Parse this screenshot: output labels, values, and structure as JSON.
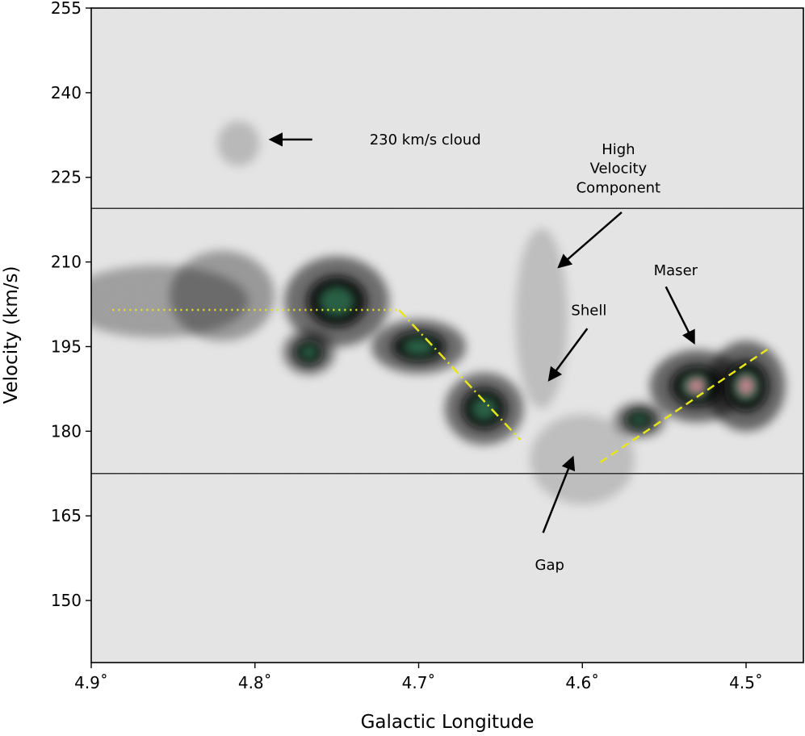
{
  "chart_data": {
    "type": "heatmap",
    "title": "",
    "xlabel": "Galactic Longitude",
    "ylabel": "Velocity (km/s)",
    "xlim": [
      4.9,
      4.465
    ],
    "ylim": [
      139,
      255
    ],
    "x_ticks": [
      {
        "value": 4.9,
        "label": "4.9˚"
      },
      {
        "value": 4.8,
        "label": "4.8˚"
      },
      {
        "value": 4.7,
        "label": "4.7˚"
      },
      {
        "value": 4.6,
        "label": "4.6˚"
      },
      {
        "value": 4.5,
        "label": "4.5˚"
      }
    ],
    "y_ticks": [
      {
        "value": 150,
        "label": "150"
      },
      {
        "value": 165,
        "label": "165"
      },
      {
        "value": 180,
        "label": "180"
      },
      {
        "value": 195,
        "label": "195"
      },
      {
        "value": 210,
        "label": "210"
      },
      {
        "value": 225,
        "label": "225"
      },
      {
        "value": 240,
        "label": "240"
      },
      {
        "value": 255,
        "label": "255"
      }
    ],
    "grid": false,
    "hlines": [
      219.5,
      172.5
    ],
    "emission": [
      {
        "x": 4.86,
        "y": 203,
        "sx": 0.035,
        "sy": 4,
        "a": 0.55
      },
      {
        "x": 4.82,
        "y": 204,
        "sx": 0.02,
        "sy": 5,
        "a": 0.6
      },
      {
        "x": 4.75,
        "y": 203,
        "sx": 0.02,
        "sy": 5,
        "a": 0.95
      },
      {
        "x": 4.767,
        "y": 194,
        "sx": 0.01,
        "sy": 2.5,
        "a": 0.85
      },
      {
        "x": 4.7,
        "y": 195,
        "sx": 0.018,
        "sy": 3,
        "a": 0.95
      },
      {
        "x": 4.66,
        "y": 184,
        "sx": 0.015,
        "sy": 4,
        "a": 0.95
      },
      {
        "x": 4.625,
        "y": 200,
        "sx": 0.01,
        "sy": 10,
        "a": 0.3
      },
      {
        "x": 4.6,
        "y": 175,
        "sx": 0.02,
        "sy": 5,
        "a": 0.3
      },
      {
        "x": 4.565,
        "y": 182,
        "sx": 0.01,
        "sy": 2,
        "a": 0.8
      },
      {
        "x": 4.53,
        "y": 188,
        "sx": 0.018,
        "sy": 4,
        "a": 1.0
      },
      {
        "x": 4.5,
        "y": 188,
        "sx": 0.015,
        "sy": 5,
        "a": 1.0
      },
      {
        "x": 4.81,
        "y": 231,
        "sx": 0.008,
        "sy": 2.5,
        "a": 0.35
      }
    ],
    "lines": [
      {
        "style": "dotted",
        "color": "#e6e619",
        "points": [
          [
            4.887,
            201.5
          ],
          [
            4.712,
            201.5
          ]
        ]
      },
      {
        "style": "dashdot",
        "color": "#e6e619",
        "points": [
          [
            4.712,
            201.5
          ],
          [
            4.638,
            178.5
          ]
        ]
      },
      {
        "style": "dashed",
        "color": "#e6e619",
        "points": [
          [
            4.589,
            174.5
          ],
          [
            4.487,
            194.5
          ]
        ]
      }
    ],
    "annotations": [
      {
        "text": "230 km/s cloud",
        "x": 4.73,
        "y": 231.7,
        "arrow_to": [
          4.79,
          231.7
        ],
        "arrow_from": [
          4.765,
          231.7
        ],
        "anchor": "start"
      },
      {
        "text": "High",
        "x": 4.578,
        "y": 230,
        "anchor": "middle"
      },
      {
        "text": "Velocity",
        "x": 4.578,
        "y": 226.6,
        "anchor": "middle"
      },
      {
        "text": "Component",
        "x": 4.578,
        "y": 223.2,
        "anchor": "middle",
        "arrow_from": [
          4.576,
          218.8
        ],
        "arrow_to": [
          4.614,
          209.2
        ]
      },
      {
        "text": "Maser",
        "x": 4.543,
        "y": 208.5,
        "anchor": "middle",
        "arrow_from": [
          4.549,
          205.6
        ],
        "arrow_to": [
          4.532,
          195.8
        ]
      },
      {
        "text": "Shell",
        "x": 4.596,
        "y": 201.4,
        "anchor": "middle",
        "arrow_from": [
          4.597,
          198.2
        ],
        "arrow_to": [
          4.62,
          189.2
        ]
      },
      {
        "text": "Gap",
        "x": 4.62,
        "y": 156.3,
        "anchor": "middle",
        "arrow_from": [
          4.624,
          162
        ],
        "arrow_to": [
          4.606,
          175.2
        ]
      }
    ]
  }
}
